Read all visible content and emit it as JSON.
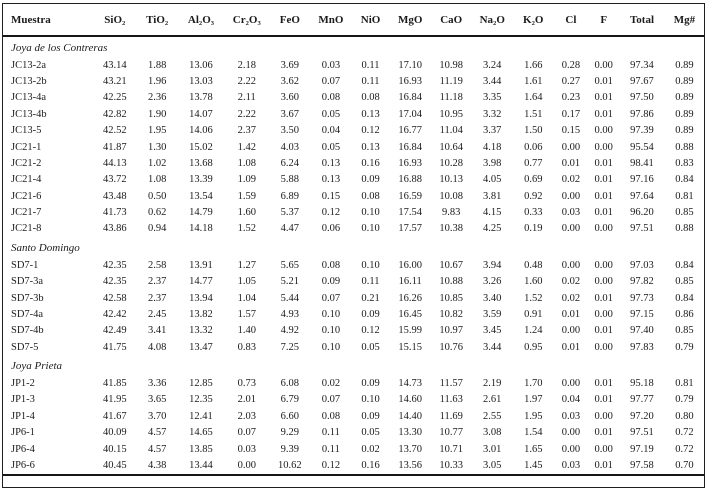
{
  "document": {
    "kind": "geochemistry-analysis-table",
    "background_color": "#ffffff",
    "text_color": "#1c1c1c",
    "rule_color": "#161616"
  },
  "table": {
    "columns": [
      "Muestra",
      "SiO₂",
      "TiO₂",
      "Al₂O₃",
      "Cr₂O₃",
      "FeO",
      "MnO",
      "NiO",
      "MgO",
      "CaO",
      "Na₂O",
      "K₂O",
      "Cl",
      "F",
      "Total",
      "Mg#"
    ],
    "groups": [
      {
        "label": "Joya de los Contreras",
        "rows": [
          {
            "muestra": "JC13-2a",
            "values": [
              "43.14",
              "1.88",
              "13.06",
              "2.18",
              "3.69",
              "0.03",
              "0.11",
              "17.10",
              "10.98",
              "3.24",
              "1.66",
              "0.28",
              "0.00",
              "97.34",
              "0.89"
            ]
          },
          {
            "muestra": "JC13-2b",
            "values": [
              "43.21",
              "1.96",
              "13.03",
              "2.22",
              "3.62",
              "0.07",
              "0.11",
              "16.93",
              "11.19",
              "3.44",
              "1.61",
              "0.27",
              "0.01",
              "97.67",
              "0.89"
            ]
          },
          {
            "muestra": "JC13-4a",
            "values": [
              "42.25",
              "2.36",
              "13.78",
              "2.11",
              "3.60",
              "0.08",
              "0.08",
              "16.84",
              "11.18",
              "3.35",
              "1.64",
              "0.23",
              "0.01",
              "97.50",
              "0.89"
            ]
          },
          {
            "muestra": "JC13-4b",
            "values": [
              "42.82",
              "1.90",
              "14.07",
              "2.22",
              "3.67",
              "0.05",
              "0.13",
              "17.04",
              "10.95",
              "3.32",
              "1.51",
              "0.17",
              "0.01",
              "97.86",
              "0.89"
            ]
          },
          {
            "muestra": "JC13-5",
            "values": [
              "42.52",
              "1.95",
              "14.06",
              "2.37",
              "3.50",
              "0.04",
              "0.12",
              "16.77",
              "11.04",
              "3.37",
              "1.50",
              "0.15",
              "0.00",
              "97.39",
              "0.89"
            ]
          },
          {
            "muestra": "JC21-1",
            "values": [
              "41.87",
              "1.30",
              "15.02",
              "1.42",
              "4.03",
              "0.05",
              "0.13",
              "16.84",
              "10.64",
              "4.18",
              "0.06",
              "0.00",
              "0.00",
              "95.54",
              "0.88"
            ]
          },
          {
            "muestra": "JC21-2",
            "values": [
              "44.13",
              "1.02",
              "13.68",
              "1.08",
              "6.24",
              "0.13",
              "0.16",
              "16.93",
              "10.28",
              "3.98",
              "0.77",
              "0.01",
              "0.01",
              "98.41",
              "0.83"
            ]
          },
          {
            "muestra": "JC21-4",
            "values": [
              "43.72",
              "1.08",
              "13.39",
              "1.09",
              "5.88",
              "0.13",
              "0.09",
              "16.88",
              "10.13",
              "4.05",
              "0.69",
              "0.02",
              "0.01",
              "97.16",
              "0.84"
            ]
          },
          {
            "muestra": "JC21-6",
            "values": [
              "43.48",
              "0.50",
              "13.54",
              "1.59",
              "6.89",
              "0.15",
              "0.08",
              "16.59",
              "10.08",
              "3.81",
              "0.92",
              "0.00",
              "0.01",
              "97.64",
              "0.81"
            ]
          },
          {
            "muestra": "JC21-7",
            "values": [
              "41.73",
              "0.62",
              "14.79",
              "1.60",
              "5.37",
              "0.12",
              "0.10",
              "17.54",
              "9.83",
              "4.15",
              "0.33",
              "0.03",
              "0.01",
              "96.20",
              "0.85"
            ]
          },
          {
            "muestra": "JC21-8",
            "values": [
              "43.86",
              "0.94",
              "14.18",
              "1.52",
              "4.47",
              "0.06",
              "0.10",
              "17.57",
              "10.38",
              "4.25",
              "0.19",
              "0.00",
              "0.00",
              "97.51",
              "0.88"
            ]
          }
        ]
      },
      {
        "label": "Santo Domingo",
        "rows": [
          {
            "muestra": "SD7-1",
            "values": [
              "42.35",
              "2.58",
              "13.91",
              "1.27",
              "5.65",
              "0.08",
              "0.10",
              "16.00",
              "10.67",
              "3.94",
              "0.48",
              "0.00",
              "0.00",
              "97.03",
              "0.84"
            ]
          },
          {
            "muestra": "SD7-3a",
            "values": [
              "42.35",
              "2.37",
              "14.77",
              "1.05",
              "5.21",
              "0.09",
              "0.11",
              "16.11",
              "10.88",
              "3.26",
              "1.60",
              "0.02",
              "0.00",
              "97.82",
              "0.85"
            ]
          },
          {
            "muestra": "SD7-3b",
            "values": [
              "42.58",
              "2.37",
              "13.94",
              "1.04",
              "5.44",
              "0.07",
              "0.21",
              "16.26",
              "10.85",
              "3.40",
              "1.52",
              "0.02",
              "0.01",
              "97.73",
              "0.84"
            ]
          },
          {
            "muestra": "SD7-4a",
            "values": [
              "42.42",
              "2.45",
              "13.82",
              "1.57",
              "4.93",
              "0.10",
              "0.09",
              "16.45",
              "10.82",
              "3.59",
              "0.91",
              "0.01",
              "0.00",
              "97.15",
              "0.86"
            ]
          },
          {
            "muestra": "SD7-4b",
            "values": [
              "42.49",
              "3.41",
              "13.32",
              "1.40",
              "4.92",
              "0.10",
              "0.12",
              "15.99",
              "10.97",
              "3.45",
              "1.24",
              "0.00",
              "0.01",
              "97.40",
              "0.85"
            ]
          },
          {
            "muestra": "SD7-5",
            "values": [
              "41.75",
              "4.08",
              "13.47",
              "0.83",
              "7.25",
              "0.10",
              "0.05",
              "15.15",
              "10.76",
              "3.44",
              "0.95",
              "0.01",
              "0.00",
              "97.83",
              "0.79"
            ]
          }
        ]
      },
      {
        "label": "Joya Prieta",
        "rows": [
          {
            "muestra": "JP1-2",
            "values": [
              "41.85",
              "3.36",
              "12.85",
              "0.73",
              "6.08",
              "0.02",
              "0.09",
              "14.73",
              "11.57",
              "2.19",
              "1.70",
              "0.00",
              "0.01",
              "95.18",
              "0.81"
            ]
          },
          {
            "muestra": "JP1-3",
            "values": [
              "41.95",
              "3.65",
              "12.35",
              "2.01",
              "6.79",
              "0.07",
              "0.10",
              "14.60",
              "11.63",
              "2.61",
              "1.97",
              "0.04",
              "0.01",
              "97.77",
              "0.79"
            ]
          },
          {
            "muestra": "JP1-4",
            "values": [
              "41.67",
              "3.70",
              "12.41",
              "2.03",
              "6.60",
              "0.08",
              "0.09",
              "14.40",
              "11.69",
              "2.55",
              "1.95",
              "0.03",
              "0.00",
              "97.20",
              "0.80"
            ]
          },
          {
            "muestra": "JP6-1",
            "values": [
              "40.09",
              "4.57",
              "14.65",
              "0.07",
              "9.29",
              "0.11",
              "0.05",
              "13.30",
              "10.77",
              "3.08",
              "1.54",
              "0.00",
              "0.01",
              "97.51",
              "0.72"
            ]
          },
          {
            "muestra": "JP6-4",
            "values": [
              "40.15",
              "4.57",
              "13.85",
              "0.03",
              "9.39",
              "0.11",
              "0.02",
              "13.70",
              "10.71",
              "3.01",
              "1.65",
              "0.00",
              "0.00",
              "97.19",
              "0.72"
            ]
          },
          {
            "muestra": "JP6-6",
            "values": [
              "40.45",
              "4.38",
              "13.44",
              "0.00",
              "10.62",
              "0.12",
              "0.16",
              "13.56",
              "10.33",
              "3.05",
              "1.45",
              "0.03",
              "0.01",
              "97.58",
              "0.70"
            ]
          }
        ]
      }
    ]
  }
}
